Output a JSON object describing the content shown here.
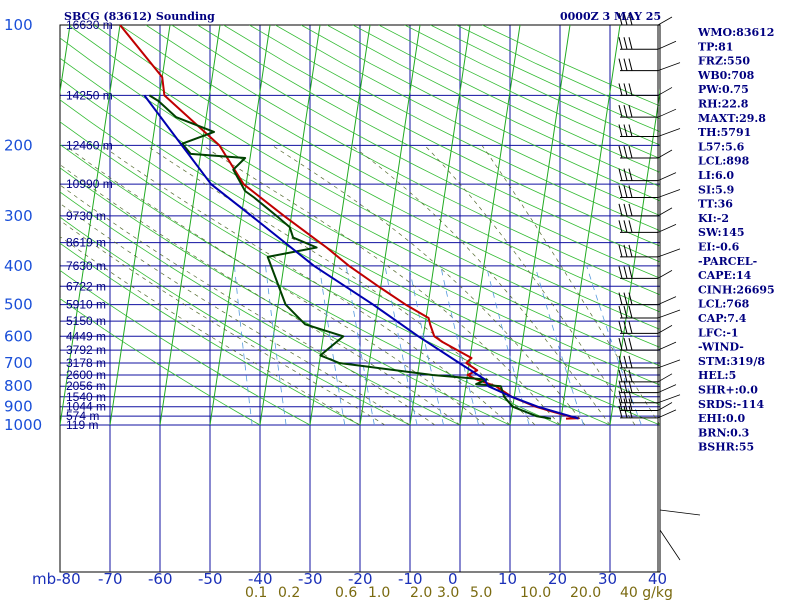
{
  "header": {
    "station": "SBCG (83612) Sounding",
    "time": "0000Z  3 MAY 25"
  },
  "indices": [
    "WMO:83612",
    "TP:81",
    "FRZ:550",
    "WB0:708",
    "PW:0.75",
    "RH:22.8",
    "MAXT:29.8",
    "TH:5791",
    "L57:5.6",
    "LCL:898",
    "LI:6.0",
    "SI:5.9",
    "TT:36",
    "KI:-2",
    "SW:145",
    "EI:-0.6",
    "-PARCEL-",
    "CAPE:14",
    "CINH:26695",
    "LCL:768",
    "CAP:7.4",
    "LFC:-1",
    "-WIND-",
    "STM:319/8",
    "HEL:5",
    "SHR+:0.0",
    "SRDS:-114",
    "EHI:0.0",
    "BRN:0.3",
    "BSHR:55"
  ],
  "chart_data": {
    "type": "line",
    "title": "SBCG (83612) Sounding",
    "subtitle": "0000Z  3 MAY 25",
    "xlabel": "",
    "ylabel": "mb",
    "xlim": [
      -80,
      40
    ],
    "pressure_ticks": [
      100,
      200,
      300,
      400,
      500,
      600,
      700,
      800,
      900,
      1000
    ],
    "temperature_ticks": [
      -80,
      -70,
      -60,
      -50,
      -40,
      -30,
      -20,
      -10,
      0,
      10,
      20,
      30,
      40
    ],
    "temperature_tick_labels": [
      "mb-80",
      "-70",
      "-60",
      "-50",
      "-40",
      "-30",
      "-20",
      "-10",
      "0",
      "10",
      "20",
      "30",
      "40"
    ],
    "mixing_ratio_labels": [
      "0.1",
      "0.2",
      "0.6",
      "1.0",
      "2.0",
      "3.0",
      "5.0",
      "10.0",
      "20.0",
      "40 g/kg"
    ],
    "height_labels": [
      {
        "p": 100,
        "label": "16630 m"
      },
      {
        "p": 150,
        "label": "14250 m"
      },
      {
        "p": 200,
        "label": "12460 m"
      },
      {
        "p": 250,
        "label": "10990 m"
      },
      {
        "p": 300,
        "label": "9730 m"
      },
      {
        "p": 350,
        "label": "8619 m"
      },
      {
        "p": 400,
        "label": "7630 m"
      },
      {
        "p": 450,
        "label": "6722 m"
      },
      {
        "p": 500,
        "label": "5910 m"
      },
      {
        "p": 550,
        "label": "5150 m"
      },
      {
        "p": 600,
        "label": "4449 m"
      },
      {
        "p": 650,
        "label": "3792 m"
      },
      {
        "p": 700,
        "label": "3178 m"
      },
      {
        "p": 750,
        "label": "2600 m"
      },
      {
        "p": 800,
        "label": "2056 m"
      },
      {
        "p": 850,
        "label": "1540 m"
      },
      {
        "p": 900,
        "label": "1044 m"
      },
      {
        "p": 950,
        "label": "574 m"
      },
      {
        "p": 1000,
        "label": "119 m"
      }
    ],
    "series": [
      {
        "role": "temperature",
        "color": "#c00000",
        "points": [
          {
            "p": 964,
            "t": 21.0
          },
          {
            "p": 962,
            "t": 23.5
          },
          {
            "p": 950,
            "t": 21.5
          },
          {
            "p": 925,
            "t": 18.0
          },
          {
            "p": 900,
            "t": 14.6
          },
          {
            "p": 850,
            "t": 9.5
          },
          {
            "p": 800,
            "t": 6.0
          },
          {
            "p": 770,
            "t": 2.0
          },
          {
            "p": 750,
            "t": 0.0
          },
          {
            "p": 730,
            "t": 1.8
          },
          {
            "p": 700,
            "t": -0.6
          },
          {
            "p": 680,
            "t": 0.3
          },
          {
            "p": 620,
            "t": -6.0
          },
          {
            "p": 600,
            "t": -7.8
          },
          {
            "p": 560,
            "t": -9.0
          },
          {
            "p": 540,
            "t": -9.5
          },
          {
            "p": 500,
            "t": -14.5
          },
          {
            "p": 450,
            "t": -20.5
          },
          {
            "p": 400,
            "t": -27.0
          },
          {
            "p": 360,
            "t": -32.0
          },
          {
            "p": 350,
            "t": -33.5
          },
          {
            "p": 300,
            "t": -41.5
          },
          {
            "p": 250,
            "t": -50.5
          },
          {
            "p": 200,
            "t": -56.5
          },
          {
            "p": 150,
            "t": -69.0
          },
          {
            "p": 135,
            "t": -70.0
          },
          {
            "p": 100,
            "t": -80.0
          }
        ]
      },
      {
        "role": "dewpoint",
        "color": "#004000",
        "points": [
          {
            "p": 964,
            "t": 18.0
          },
          {
            "p": 950,
            "t": 15.0
          },
          {
            "p": 900,
            "t": 10.0
          },
          {
            "p": 850,
            "t": 8.0
          },
          {
            "p": 800,
            "t": 7.0
          },
          {
            "p": 790,
            "t": 2.0
          },
          {
            "p": 770,
            "t": 4.0
          },
          {
            "p": 750,
            "t": -7.0
          },
          {
            "p": 700,
            "t": -26.0
          },
          {
            "p": 670,
            "t": -30.0
          },
          {
            "p": 600,
            "t": -26.0
          },
          {
            "p": 560,
            "t": -34.0
          },
          {
            "p": 500,
            "t": -38.5
          },
          {
            "p": 380,
            "t": -43.5
          },
          {
            "p": 360,
            "t": -34.0
          },
          {
            "p": 340,
            "t": -39.0
          },
          {
            "p": 320,
            "t": -40.0
          },
          {
            "p": 300,
            "t": -43.0
          },
          {
            "p": 270,
            "t": -48.0
          },
          {
            "p": 260,
            "t": -50.0
          },
          {
            "p": 230,
            "t": -53.0
          },
          {
            "p": 215,
            "t": -51.0
          },
          {
            "p": 210,
            "t": -62.0
          },
          {
            "p": 198,
            "t": -64.0
          },
          {
            "p": 185,
            "t": -58.0
          },
          {
            "p": 170,
            "t": -66.0
          },
          {
            "p": 155,
            "t": -70.0
          },
          {
            "p": 150,
            "t": -72.0
          }
        ]
      },
      {
        "role": "parcel",
        "color": "#0000b0",
        "points": [
          {
            "p": 964,
            "t": 23.5
          },
          {
            "p": 900,
            "t": 15.0
          },
          {
            "p": 850,
            "t": 9.5
          },
          {
            "p": 800,
            "t": 4.5
          },
          {
            "p": 768,
            "t": 3.5
          },
          {
            "p": 700,
            "t": -2.0
          },
          {
            "p": 600,
            "t": -11.0
          },
          {
            "p": 500,
            "t": -21.0
          },
          {
            "p": 400,
            "t": -34.0
          },
          {
            "p": 300,
            "t": -48.0
          },
          {
            "p": 250,
            "t": -57.0
          },
          {
            "p": 200,
            "t": -64.0
          },
          {
            "p": 150,
            "t": -73.0
          }
        ]
      }
    ],
    "wind_barbs": [
      {
        "p": 100
      },
      {
        "p": 115
      },
      {
        "p": 130
      },
      {
        "p": 150
      },
      {
        "p": 170
      },
      {
        "p": 190
      },
      {
        "p": 215
      },
      {
        "p": 245
      },
      {
        "p": 270
      },
      {
        "p": 300
      },
      {
        "p": 330
      },
      {
        "p": 380
      },
      {
        "p": 430
      },
      {
        "p": 500
      },
      {
        "p": 540
      },
      {
        "p": 590
      },
      {
        "p": 650
      },
      {
        "p": 720
      },
      {
        "p": 780
      },
      {
        "p": 830
      },
      {
        "p": 880
      },
      {
        "p": 920
      },
      {
        "p": 960
      }
    ],
    "grid": true,
    "legend": "none"
  }
}
